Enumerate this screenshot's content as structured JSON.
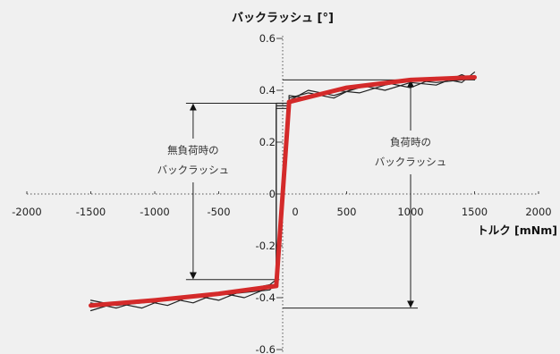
{
  "chart_data": {
    "type": "line",
    "title": "",
    "ylabel": "バックラッシュ [°]",
    "xlabel": "トルク [mNm]",
    "xlim": [
      -2000,
      2000
    ],
    "ylim": [
      -0.6,
      0.6
    ],
    "x_ticks": [
      -2000,
      -1500,
      -1000,
      -500,
      0,
      500,
      1000,
      1500,
      2000
    ],
    "x_tick_labels": [
      "-2000",
      "-1500",
      "-1000",
      "-500",
      "0",
      "500",
      "1000",
      "1500",
      "2000"
    ],
    "y_ticks": [
      -0.6,
      -0.4,
      -0.2,
      0,
      0.2,
      0.4,
      0.6
    ],
    "y_tick_labels": [
      "-0.6",
      "-0.4",
      "-0.2",
      "0",
      "0.2",
      "0.4",
      "0.6"
    ],
    "grid": false,
    "series": [
      {
        "color": "#d42a2a",
        "x": [
          -1500,
          -1000,
          -500,
          -50,
          -50,
          50,
          50,
          500,
          1000,
          1500
        ],
        "y": [
          -0.43,
          -0.41,
          -0.385,
          -0.355,
          -0.35,
          0.35,
          0.355,
          0.41,
          0.44,
          0.45
        ]
      },
      {
        "color": "#222222",
        "x": [
          -1500,
          -1300,
          -1100,
          -900,
          -700,
          -500,
          -300,
          -100,
          -50,
          -50,
          50,
          50,
          200,
          400,
          600,
          800,
          1000,
          1200,
          1400,
          1500
        ],
        "y": [
          -0.42,
          -0.44,
          -0.41,
          -0.43,
          -0.39,
          -0.41,
          -0.37,
          -0.35,
          -0.33,
          0.35,
          0.35,
          0.37,
          0.39,
          0.37,
          0.42,
          0.4,
          0.43,
          0.42,
          0.46,
          0.44
        ]
      },
      {
        "color": "#222222",
        "x": [
          -1500,
          -1300,
          -1100,
          -900,
          -700,
          -500,
          -300,
          -100,
          -50,
          -50,
          50,
          50,
          200,
          400,
          600,
          800,
          1000,
          1200,
          1400,
          1500
        ],
        "y": [
          -0.45,
          -0.42,
          -0.44,
          -0.4,
          -0.42,
          -0.38,
          -0.4,
          -0.36,
          -0.35,
          0.33,
          0.33,
          0.36,
          0.4,
          0.38,
          0.41,
          0.43,
          0.41,
          0.45,
          0.43,
          0.47
        ]
      },
      {
        "color": "#222222",
        "x": [
          -1500,
          -1300,
          -1100,
          -900,
          -700,
          -500,
          -300,
          -100,
          -50,
          -50,
          50,
          50,
          200,
          400,
          600,
          800,
          1000,
          1200,
          1400,
          1500
        ],
        "y": [
          -0.41,
          -0.43,
          -0.42,
          -0.41,
          -0.4,
          -0.39,
          -0.38,
          -0.37,
          -0.34,
          0.34,
          0.34,
          0.38,
          0.37,
          0.4,
          0.39,
          0.42,
          0.44,
          0.43,
          0.44,
          0.45
        ]
      }
    ],
    "annotations": [
      {
        "lines": [
          "無負荷時の",
          "バックラッシュ"
        ],
        "arrow_x": -700,
        "arrow_from": 0.35,
        "arrow_to": -0.33
      },
      {
        "lines": [
          "負荷時の",
          "バックラッシュ"
        ],
        "arrow_x": 1000,
        "arrow_from": 0.44,
        "arrow_to": -0.44
      }
    ]
  }
}
